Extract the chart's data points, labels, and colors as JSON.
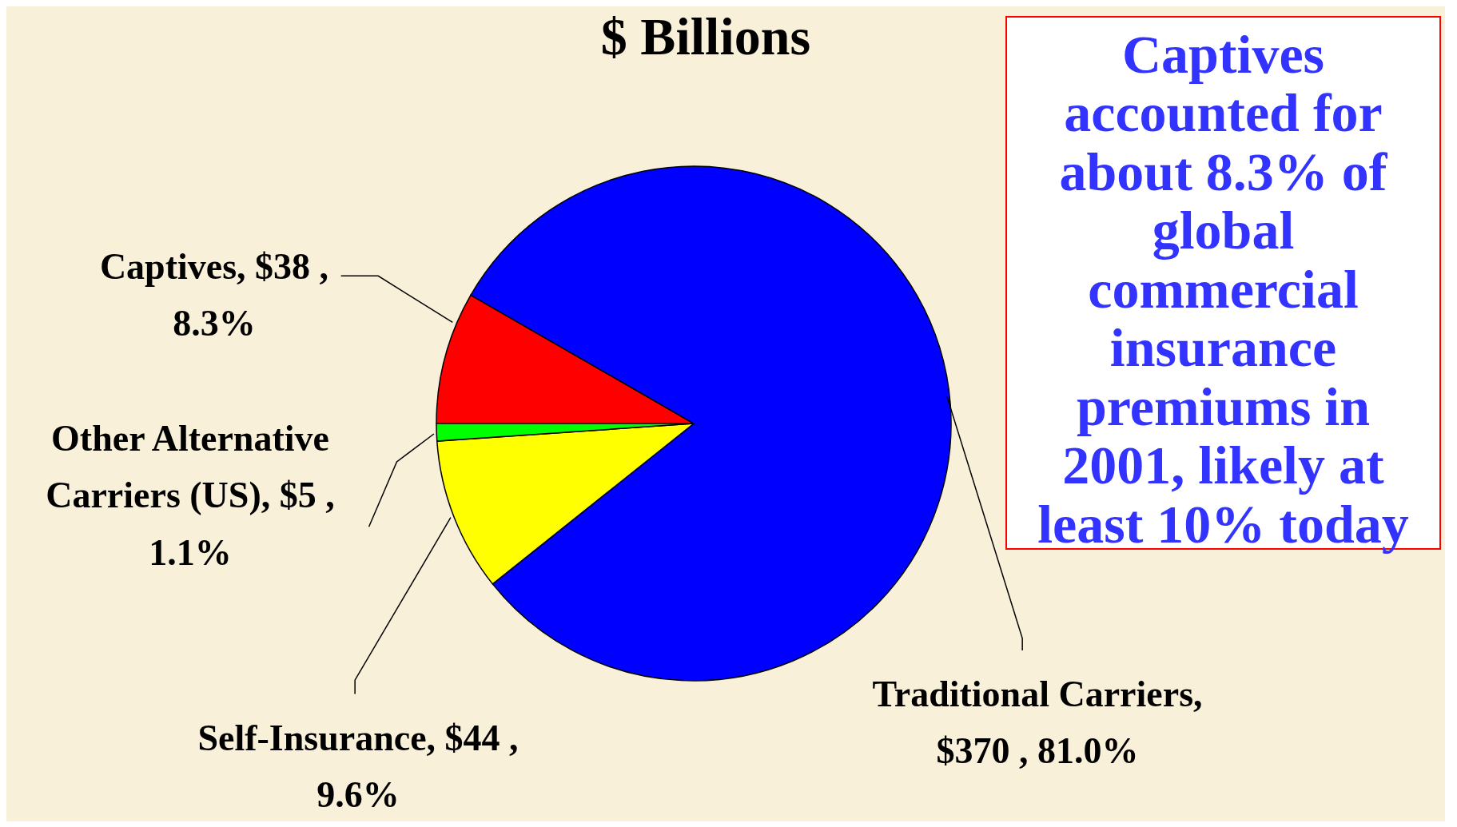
{
  "chart_data": {
    "type": "pie",
    "title": "$ Billions",
    "categories": [
      "Captives, $38 , 8.3%",
      "Traditional Carriers, $370 , 81.0%",
      "Self-Insurance, $44 , 9.6%",
      "Other Alternative Carriers (US), $5 , 1.1%"
    ],
    "values": [
      38,
      370,
      44,
      5
    ],
    "colors": [
      "#ff0000",
      "#0000ff",
      "#ffff00",
      "#00ff00"
    ],
    "annotations": [
      "Captives accounted for about 8.3% of global commercial insurance premiums in 2001, likely at least 10% today"
    ]
  }
}
